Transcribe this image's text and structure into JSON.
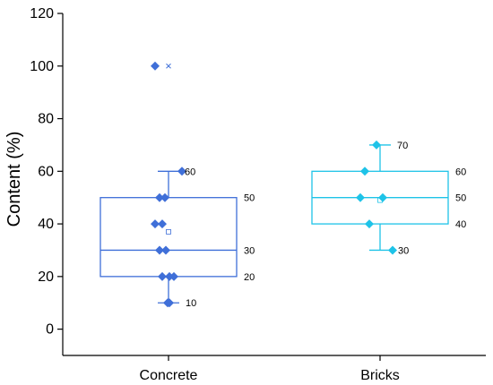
{
  "chart_data": {
    "type": "box",
    "ylabel": "Content (%)",
    "xlabel": "",
    "ylim": [
      -10,
      120
    ],
    "yticks": [
      0,
      20,
      40,
      60,
      80,
      100,
      120
    ],
    "categories": [
      "Concrete",
      "Bricks"
    ],
    "series": [
      {
        "category": "Concrete",
        "color": "#3f6fd8",
        "box": {
          "min": 10,
          "q1": 20,
          "median": 30,
          "q3": 50,
          "max": 60,
          "mean": 37
        },
        "points": [
          100,
          60,
          50,
          50,
          40,
          40,
          30,
          30,
          20,
          20,
          20,
          10,
          10
        ],
        "outliers": [
          100
        ],
        "labels": [
          {
            "value": 60,
            "text": "60"
          },
          {
            "value": 50,
            "text": "50"
          },
          {
            "value": 30,
            "text": "30"
          },
          {
            "value": 20,
            "text": "20"
          },
          {
            "value": 10,
            "text": "10"
          }
        ]
      },
      {
        "category": "Bricks",
        "color": "#1ec3e8",
        "box": {
          "min": 30,
          "q1": 40,
          "median": 50,
          "q3": 60,
          "max": 70,
          "mean": 49
        },
        "points": [
          70,
          60,
          50,
          50,
          40,
          30
        ],
        "outliers": [],
        "labels": [
          {
            "value": 70,
            "text": "70"
          },
          {
            "value": 60,
            "text": "60"
          },
          {
            "value": 50,
            "text": "50"
          },
          {
            "value": 40,
            "text": "40"
          },
          {
            "value": 30,
            "text": "30"
          }
        ]
      }
    ]
  }
}
